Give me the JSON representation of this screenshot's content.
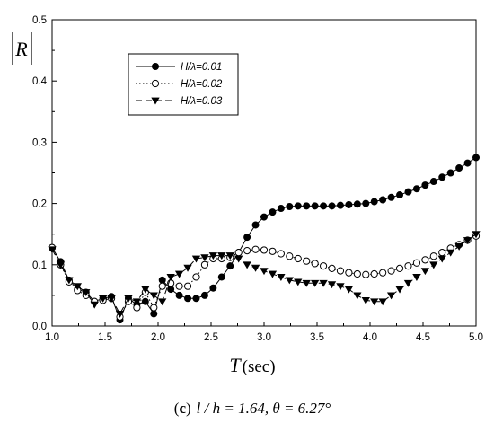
{
  "chart_data": {
    "type": "line",
    "xlabel_symbol": "T",
    "xlabel_unit": "(sec)",
    "ylabel": "R",
    "xlim": [
      1.0,
      5.0
    ],
    "ylim": [
      0.0,
      0.5
    ],
    "xticks": [
      "1.0",
      "1.5",
      "2.0",
      "2.5",
      "3.0",
      "3.5",
      "4.0",
      "4.5",
      "5.0"
    ],
    "yticks": [
      "0.0",
      "0.1",
      "0.2",
      "0.3",
      "0.4",
      "0.5"
    ],
    "legend_position": "top-left",
    "grid": false,
    "caption": {
      "label": "c",
      "text": "l / h = 1.64, θ = 6.27°"
    },
    "series": [
      {
        "name": "H/λ=0.01",
        "marker": "filled-circle",
        "linestyle": "solid",
        "x": [
          1.0,
          1.08,
          1.16,
          1.24,
          1.32,
          1.4,
          1.48,
          1.56,
          1.64,
          1.72,
          1.8,
          1.88,
          1.96,
          2.04,
          2.12,
          2.2,
          2.28,
          2.36,
          2.44,
          2.52,
          2.6,
          2.68,
          2.76,
          2.84,
          2.92,
          3.0,
          3.08,
          3.16,
          3.24,
          3.32,
          3.4,
          3.48,
          3.56,
          3.64,
          3.72,
          3.8,
          3.88,
          3.96,
          4.04,
          4.12,
          4.2,
          4.28,
          4.36,
          4.44,
          4.52,
          4.6,
          4.68,
          4.76,
          4.84,
          4.92,
          5.0
        ],
        "y": [
          0.128,
          0.105,
          0.075,
          0.06,
          0.055,
          0.04,
          0.045,
          0.048,
          0.01,
          0.045,
          0.035,
          0.04,
          0.02,
          0.075,
          0.06,
          0.05,
          0.045,
          0.045,
          0.05,
          0.062,
          0.08,
          0.098,
          0.12,
          0.145,
          0.165,
          0.178,
          0.186,
          0.192,
          0.195,
          0.196,
          0.196,
          0.196,
          0.196,
          0.196,
          0.197,
          0.198,
          0.199,
          0.2,
          0.203,
          0.206,
          0.21,
          0.214,
          0.219,
          0.224,
          0.23,
          0.236,
          0.243,
          0.25,
          0.258,
          0.266,
          0.275
        ]
      },
      {
        "name": "H/λ=0.02",
        "marker": "open-circle",
        "linestyle": "dotted",
        "x": [
          1.0,
          1.08,
          1.16,
          1.24,
          1.32,
          1.4,
          1.48,
          1.56,
          1.64,
          1.72,
          1.8,
          1.88,
          1.96,
          2.04,
          2.12,
          2.2,
          2.28,
          2.36,
          2.44,
          2.52,
          2.6,
          2.68,
          2.76,
          2.84,
          2.92,
          3.0,
          3.08,
          3.16,
          3.24,
          3.32,
          3.4,
          3.48,
          3.56,
          3.64,
          3.72,
          3.8,
          3.88,
          3.96,
          4.04,
          4.12,
          4.2,
          4.28,
          4.36,
          4.44,
          4.52,
          4.6,
          4.68,
          4.76,
          4.84,
          4.92,
          5.0
        ],
        "y": [
          0.128,
          0.1,
          0.072,
          0.058,
          0.05,
          0.04,
          0.042,
          0.045,
          0.015,
          0.04,
          0.03,
          0.055,
          0.03,
          0.065,
          0.07,
          0.065,
          0.065,
          0.08,
          0.1,
          0.11,
          0.11,
          0.112,
          0.12,
          0.123,
          0.125,
          0.124,
          0.122,
          0.118,
          0.114,
          0.11,
          0.106,
          0.102,
          0.098,
          0.094,
          0.09,
          0.087,
          0.085,
          0.084,
          0.085,
          0.087,
          0.09,
          0.094,
          0.098,
          0.103,
          0.108,
          0.114,
          0.12,
          0.127,
          0.133,
          0.14,
          0.147
        ]
      },
      {
        "name": "H/λ=0.03",
        "marker": "filled-triangle-down",
        "linestyle": "dashed",
        "x": [
          1.0,
          1.08,
          1.16,
          1.24,
          1.32,
          1.4,
          1.48,
          1.56,
          1.64,
          1.72,
          1.8,
          1.88,
          1.96,
          2.04,
          2.12,
          2.2,
          2.28,
          2.36,
          2.44,
          2.52,
          2.6,
          2.68,
          2.76,
          2.84,
          2.92,
          3.0,
          3.08,
          3.16,
          3.24,
          3.32,
          3.4,
          3.48,
          3.56,
          3.64,
          3.72,
          3.8,
          3.88,
          3.96,
          4.04,
          4.12,
          4.2,
          4.28,
          4.36,
          4.44,
          4.52,
          4.6,
          4.68,
          4.76,
          4.84,
          4.92,
          5.0
        ],
        "y": [
          0.125,
          0.1,
          0.075,
          0.065,
          0.055,
          0.035,
          0.045,
          0.045,
          0.02,
          0.045,
          0.04,
          0.06,
          0.05,
          0.04,
          0.08,
          0.085,
          0.095,
          0.11,
          0.112,
          0.115,
          0.115,
          0.115,
          0.11,
          0.1,
          0.095,
          0.09,
          0.085,
          0.08,
          0.075,
          0.072,
          0.07,
          0.07,
          0.07,
          0.068,
          0.065,
          0.06,
          0.05,
          0.042,
          0.04,
          0.04,
          0.05,
          0.06,
          0.07,
          0.08,
          0.09,
          0.1,
          0.11,
          0.12,
          0.13,
          0.14,
          0.15
        ]
      }
    ]
  }
}
